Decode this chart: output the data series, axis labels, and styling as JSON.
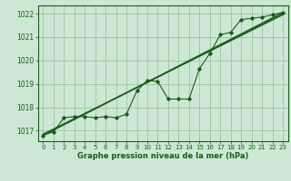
{
  "title": "Graphe pression niveau de la mer (hPa)",
  "bg_color": "#cce8d4",
  "grid_color": "#99bb99",
  "line_color": "#1a5c1a",
  "x_ticks": [
    0,
    1,
    2,
    3,
    4,
    5,
    6,
    7,
    8,
    9,
    10,
    11,
    12,
    13,
    14,
    15,
    16,
    17,
    18,
    19,
    20,
    21,
    22,
    23
  ],
  "y_ticks": [
    1017,
    1018,
    1019,
    1020,
    1021,
    1022
  ],
  "ylim": [
    1016.55,
    1022.35
  ],
  "xlim": [
    -0.5,
    23.5
  ],
  "main_series": [
    [
      0,
      1016.8
    ],
    [
      1,
      1016.95
    ],
    [
      2,
      1017.55
    ],
    [
      3,
      1017.6
    ],
    [
      4,
      1017.6
    ],
    [
      5,
      1017.55
    ],
    [
      6,
      1017.6
    ],
    [
      7,
      1017.55
    ],
    [
      8,
      1017.7
    ],
    [
      9,
      1018.7
    ],
    [
      10,
      1019.15
    ],
    [
      11,
      1019.1
    ],
    [
      12,
      1018.35
    ],
    [
      13,
      1018.35
    ],
    [
      14,
      1018.35
    ],
    [
      15,
      1019.65
    ],
    [
      16,
      1020.3
    ],
    [
      17,
      1021.1
    ],
    [
      18,
      1021.2
    ],
    [
      19,
      1021.75
    ],
    [
      20,
      1021.8
    ],
    [
      21,
      1021.85
    ],
    [
      22,
      1021.95
    ],
    [
      23,
      1022.05
    ]
  ],
  "trend_line1": [
    [
      0,
      1016.8
    ],
    [
      23,
      1022.05
    ]
  ],
  "trend_line2": [
    [
      0,
      1016.8
    ],
    [
      23,
      1022.0
    ]
  ],
  "trend_line3": [
    [
      0,
      1016.85
    ],
    [
      23,
      1021.95
    ]
  ],
  "label_fontsize": 5.5,
  "tick_fontsize": 5.0,
  "title_fontsize": 6.0
}
